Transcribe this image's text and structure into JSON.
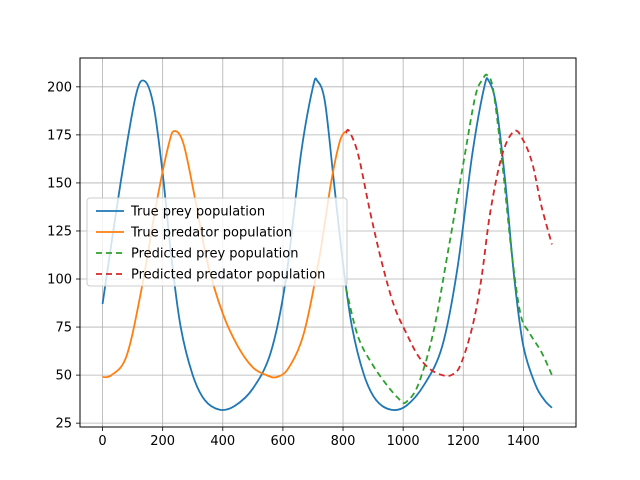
{
  "chart_data": {
    "type": "line",
    "title": "",
    "xlabel": "",
    "ylabel": "",
    "xlim": [
      -75,
      1575
    ],
    "ylim": [
      23,
      215
    ],
    "xticks": [
      0,
      200,
      400,
      600,
      800,
      1000,
      1200,
      1400
    ],
    "yticks": [
      25,
      50,
      75,
      100,
      125,
      150,
      175,
      200
    ],
    "xtick_labels": [
      "0",
      "200",
      "400",
      "600",
      "800",
      "1000",
      "1200",
      "1400"
    ],
    "ytick_labels": [
      "25",
      "50",
      "75",
      "100",
      "125",
      "150",
      "175",
      "200"
    ],
    "grid": true,
    "legend_position": "center-left",
    "series": [
      {
        "name": "True prey population",
        "color": "#1f77b4",
        "dash": "solid",
        "points": [
          [
            0,
            87
          ],
          [
            60,
            150
          ],
          [
            110,
            195
          ],
          [
            140,
            203
          ],
          [
            170,
            190
          ],
          [
            200,
            155
          ],
          [
            230,
            110
          ],
          [
            260,
            75
          ],
          [
            300,
            50
          ],
          [
            340,
            37
          ],
          [
            390,
            32
          ],
          [
            440,
            34
          ],
          [
            500,
            43
          ],
          [
            560,
            62
          ],
          [
            610,
            100
          ],
          [
            660,
            165
          ],
          [
            700,
            200
          ],
          [
            715,
            203
          ],
          [
            740,
            192
          ],
          [
            770,
            150
          ],
          [
            800,
            108
          ],
          [
            830,
            75
          ],
          [
            870,
            50
          ],
          [
            910,
            37
          ],
          [
            960,
            32
          ],
          [
            1010,
            34
          ],
          [
            1070,
            45
          ],
          [
            1130,
            65
          ],
          [
            1180,
            105
          ],
          [
            1230,
            165
          ],
          [
            1270,
            200
          ],
          [
            1285,
            203
          ],
          [
            1310,
            190
          ],
          [
            1340,
            150
          ],
          [
            1370,
            100
          ],
          [
            1400,
            65
          ],
          [
            1440,
            45
          ],
          [
            1470,
            37
          ],
          [
            1495,
            33
          ]
        ]
      },
      {
        "name": "True predator population",
        "color": "#ff7f0e",
        "dash": "solid",
        "points": [
          [
            0,
            49
          ],
          [
            30,
            50
          ],
          [
            80,
            60
          ],
          [
            130,
            95
          ],
          [
            180,
            140
          ],
          [
            220,
            170
          ],
          [
            240,
            177
          ],
          [
            270,
            170
          ],
          [
            310,
            140
          ],
          [
            350,
            108
          ],
          [
            400,
            82
          ],
          [
            450,
            65
          ],
          [
            500,
            54
          ],
          [
            545,
            50
          ],
          [
            580,
            49
          ],
          [
            620,
            54
          ],
          [
            670,
            72
          ],
          [
            720,
            110
          ],
          [
            760,
            150
          ],
          [
            790,
            172
          ],
          [
            810,
            177
          ]
        ]
      },
      {
        "name": "Predicted prey population",
        "color": "#2ca02c",
        "dash": "6,4",
        "points": [
          [
            810,
            95
          ],
          [
            850,
            70
          ],
          [
            900,
            55
          ],
          [
            950,
            44
          ],
          [
            990,
            37
          ],
          [
            1010,
            36
          ],
          [
            1050,
            45
          ],
          [
            1100,
            72
          ],
          [
            1150,
            115
          ],
          [
            1200,
            160
          ],
          [
            1240,
            195
          ],
          [
            1265,
            204
          ],
          [
            1280,
            206
          ],
          [
            1300,
            198
          ],
          [
            1330,
            160
          ],
          [
            1360,
            115
          ],
          [
            1390,
            82
          ],
          [
            1420,
            72
          ],
          [
            1460,
            62
          ],
          [
            1495,
            50
          ]
        ]
      },
      {
        "name": "Predicted predator population",
        "color": "#d62728",
        "dash": "6,4",
        "points": [
          [
            810,
            176
          ],
          [
            820,
            177
          ],
          [
            850,
            165
          ],
          [
            890,
            135
          ],
          [
            930,
            108
          ],
          [
            970,
            86
          ],
          [
            1010,
            72
          ],
          [
            1050,
            60
          ],
          [
            1090,
            53
          ],
          [
            1130,
            50
          ],
          [
            1160,
            50
          ],
          [
            1190,
            55
          ],
          [
            1230,
            75
          ],
          [
            1260,
            100
          ],
          [
            1290,
            135
          ],
          [
            1330,
            165
          ],
          [
            1370,
            177
          ],
          [
            1400,
            172
          ],
          [
            1430,
            160
          ],
          [
            1460,
            138
          ],
          [
            1495,
            118
          ]
        ]
      }
    ]
  }
}
